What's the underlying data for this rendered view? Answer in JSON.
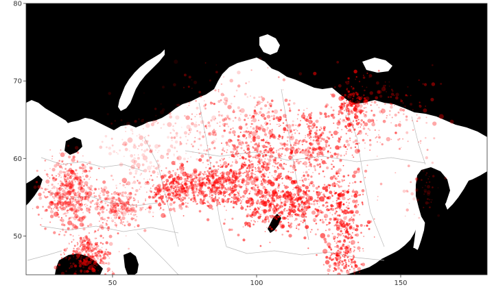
{
  "chart_data": {
    "type": "map",
    "xlim": [
      20,
      180
    ],
    "ylim": [
      45,
      80
    ],
    "x_ticks": [
      50,
      100,
      150
    ],
    "y_ticks": [
      50,
      60,
      70,
      80
    ],
    "x_tick_labels": [
      "50",
      "100",
      "150"
    ],
    "y_tick_labels": [
      "50",
      "60",
      "70",
      "80"
    ],
    "grid": false,
    "colors": {
      "sea": "#000000",
      "land": "#ffffff",
      "borders": "#b8b8b8",
      "points": "#ff0000"
    },
    "point_clusters": [
      {
        "lon": 35,
        "lat": 55.5,
        "slon": 5,
        "slat": 2.2,
        "n": 520,
        "alpha": 0.38
      },
      {
        "lon": 42,
        "lat": 47.5,
        "slon": 4,
        "slat": 1.5,
        "n": 260,
        "alpha": 0.45
      },
      {
        "lon": 52,
        "lat": 54,
        "slon": 5,
        "slat": 1.5,
        "n": 260,
        "alpha": 0.34
      },
      {
        "lon": 72,
        "lat": 56,
        "slon": 5,
        "slat": 1.3,
        "n": 320,
        "alpha": 0.5
      },
      {
        "lon": 86,
        "lat": 56.5,
        "slon": 5,
        "slat": 1.4,
        "n": 320,
        "alpha": 0.5
      },
      {
        "lon": 100,
        "lat": 59,
        "slon": 7,
        "slat": 3.5,
        "n": 560,
        "alpha": 0.5
      },
      {
        "lon": 112,
        "lat": 54,
        "slon": 7,
        "slat": 1.6,
        "n": 440,
        "alpha": 0.55
      },
      {
        "lon": 118,
        "lat": 62,
        "slon": 6,
        "slat": 2.5,
        "n": 320,
        "alpha": 0.48
      },
      {
        "lon": 130,
        "lat": 52.5,
        "slon": 4,
        "slat": 3.5,
        "n": 320,
        "alpha": 0.55
      },
      {
        "lon": 134,
        "lat": 66,
        "slon": 3,
        "slat": 2,
        "n": 180,
        "alpha": 0.55
      },
      {
        "lon": 130,
        "lat": 47,
        "slon": 2.5,
        "slat": 1.2,
        "n": 120,
        "alpha": 0.55
      },
      {
        "lon": 90,
        "lat": 64,
        "slon": 10,
        "slat": 3.5,
        "n": 260,
        "alpha": 0.3
      },
      {
        "lon": 145,
        "lat": 66,
        "slon": 8,
        "slat": 3,
        "n": 160,
        "alpha": 0.35
      },
      {
        "lon": 65,
        "lat": 61,
        "slon": 8,
        "slat": 3,
        "n": 200,
        "alpha": 0.18
      },
      {
        "lon": 158,
        "lat": 56,
        "slon": 3,
        "slat": 2,
        "n": 50,
        "alpha": 0.25
      }
    ]
  }
}
